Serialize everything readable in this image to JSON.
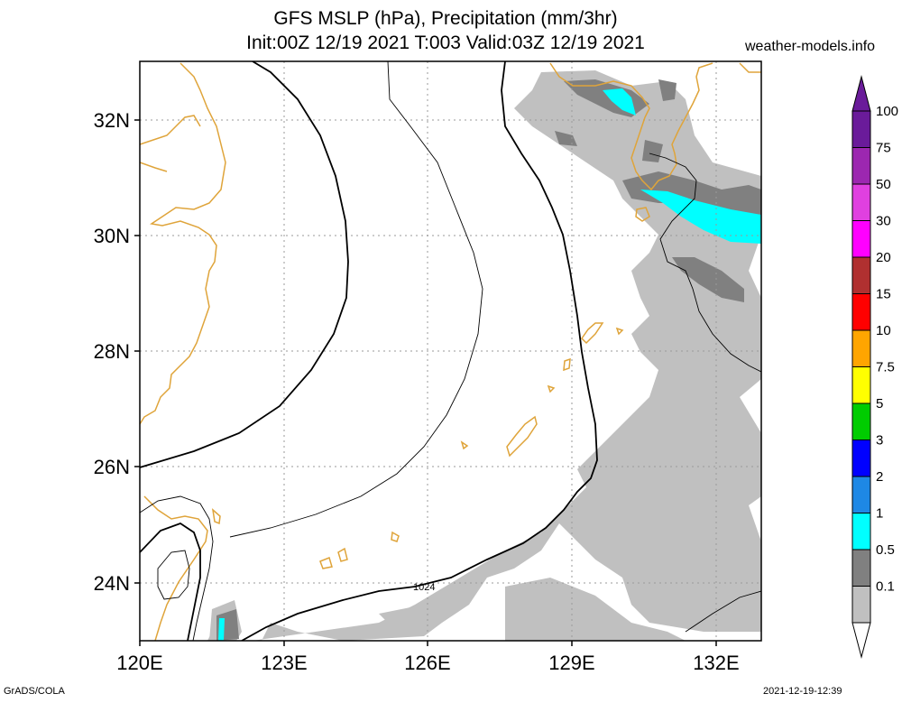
{
  "header": {
    "title_line1": "GFS MSLP (hPa), Precipitation (mm/3hr)",
    "title_line2": "Init:00Z 12/19 2021 T:003 Valid:03Z 12/19 2021",
    "site": "weather-models.info"
  },
  "map": {
    "lat_labels": [
      "32N",
      "30N",
      "28N",
      "26N",
      "24N"
    ],
    "lon_labels": [
      "120E",
      "123E",
      "126E",
      "129E",
      "132E"
    ],
    "isobar_label": "1024",
    "colors": {
      "coastline": "#dfa43a",
      "isobar": "#000000",
      "grid": "#9a9a9a"
    }
  },
  "colorbar": {
    "levels": [
      {
        "label": "100",
        "color": "#6a1b9a"
      },
      {
        "label": "75",
        "color": "#9c27b0"
      },
      {
        "label": "50",
        "color": "#e040e0"
      },
      {
        "label": "30",
        "color": "#ff00ff"
      },
      {
        "label": "20",
        "color": "#b03030"
      },
      {
        "label": "15",
        "color": "#ff0000"
      },
      {
        "label": "10",
        "color": "#ffa500"
      },
      {
        "label": "7.5",
        "color": "#ffff00"
      },
      {
        "label": "5",
        "color": "#00cc00"
      },
      {
        "label": "3",
        "color": "#0000ff"
      },
      {
        "label": "2",
        "color": "#1e88e5"
      },
      {
        "label": "1",
        "color": "#00ffff"
      },
      {
        "label": "0.5",
        "color": "#808080"
      },
      {
        "label": "0.1",
        "color": "#c0c0c0"
      }
    ]
  },
  "footer": {
    "left": "GrADS/COLA",
    "right": "2021-12-19-12:39"
  }
}
